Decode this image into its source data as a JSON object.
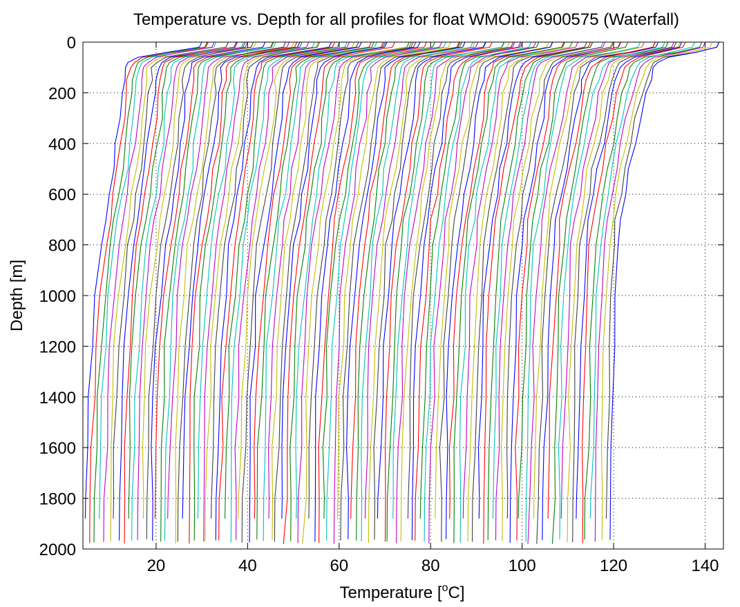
{
  "chart_data": {
    "type": "line",
    "title": "Temperature vs. Depth for all profiles for float WMOId: 6900575 (Waterfall)",
    "xlabel": "Temperature [°C]",
    "xlabel_parts": {
      "main": "Temperature [",
      "sup": "o",
      "end": "C]"
    },
    "ylabel": "Depth [m]",
    "xlim": [
      4,
      144
    ],
    "ylim": [
      0,
      2000
    ],
    "y_reversed": true,
    "xticks": [
      20,
      40,
      60,
      80,
      100,
      120,
      140
    ],
    "xtick_labels": [
      "20",
      "40",
      "60",
      "80",
      "100",
      "120",
      "140"
    ],
    "yticks": [
      0,
      200,
      400,
      600,
      800,
      1000,
      1200,
      1400,
      1600,
      1800,
      2000
    ],
    "ytick_labels": [
      "0",
      "200",
      "400",
      "600",
      "800",
      "1000",
      "1200",
      "1400",
      "1600",
      "1800",
      "2000"
    ],
    "grid": true,
    "grid_style": "dotted",
    "legend": "none",
    "profile_count": 113,
    "colors": [
      "#0000ff",
      "#ff0000",
      "#007f00",
      "#00bfbf",
      "#bf00bf",
      "#bfbf00",
      "#3f3f3f"
    ],
    "note_waterfall": "each successive profile offset by ~1 °C",
    "profile_shape": {
      "depth": [
        0,
        20,
        40,
        60,
        80,
        100,
        150,
        200,
        300,
        400,
        500,
        600,
        700,
        800,
        1000,
        1200,
        1400,
        1600,
        1800,
        1980
      ],
      "first_profile_temperature": [
        29.5,
        29.0,
        22.0,
        16.0,
        14.0,
        13.2,
        12.8,
        12.5,
        12.0,
        11.3,
        10.5,
        9.6,
        8.8,
        7.9,
        6.7,
        5.9,
        5.4,
        5.0,
        4.8,
        4.5
      ],
      "last_profile_temperature": [
        143.0,
        142.5,
        138.0,
        132.0,
        130.0,
        129.0,
        128.0,
        127.2,
        126.0,
        124.8,
        123.6,
        122.5,
        121.6,
        121.0,
        120.5,
        120.1,
        119.8,
        119.5,
        119.3,
        119.0
      ]
    },
    "profile_offset_step": 1.01
  }
}
